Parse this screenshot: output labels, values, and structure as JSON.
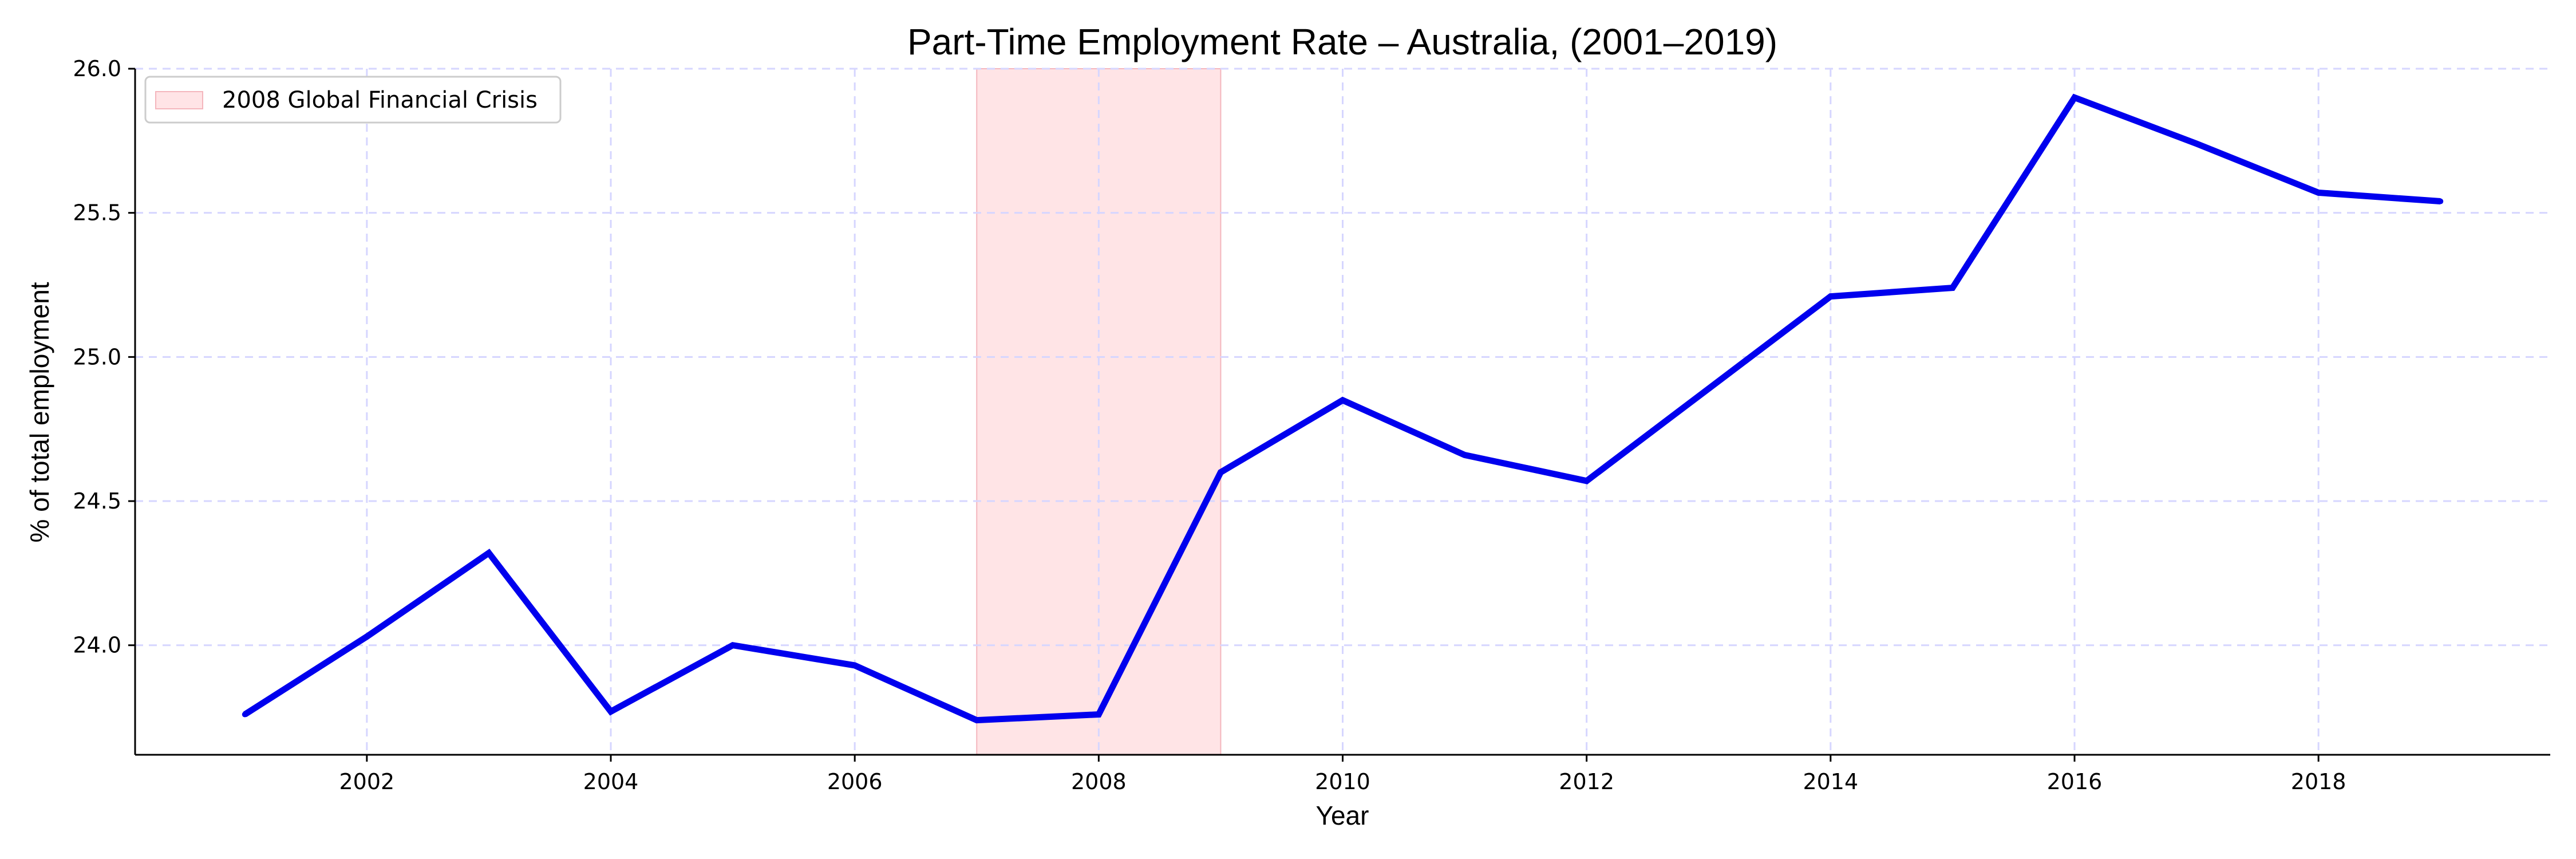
{
  "chart_data": {
    "type": "line",
    "title": "Part-Time Employment Rate – Australia, (2001–2019)",
    "xlabel": "Year",
    "ylabel": "% of total employment",
    "x": [
      2001,
      2002,
      2003,
      2004,
      2005,
      2006,
      2007,
      2008,
      2009,
      2010,
      2011,
      2012,
      2013,
      2014,
      2015,
      2016,
      2017,
      2018,
      2019
    ],
    "series": [
      {
        "name": "Part-time employment rate",
        "color": "#0000ee",
        "values": [
          23.76,
          24.03,
          24.32,
          23.77,
          24.0,
          23.93,
          23.74,
          23.76,
          24.6,
          24.85,
          24.66,
          24.57,
          24.89,
          25.21,
          25.24,
          25.9,
          25.74,
          25.57,
          25.54
        ]
      }
    ],
    "xlim": [
      2000.1,
      2019.9
    ],
    "ylim": [
      23.62,
      26.0
    ],
    "xticks": [
      "2002",
      "2004",
      "2006",
      "2008",
      "2010",
      "2012",
      "2014",
      "2016",
      "2018"
    ],
    "yticks": [
      "24.0",
      "24.5",
      "25.0",
      "25.5",
      "26.0"
    ],
    "grid": true,
    "shaded_region": {
      "label": "2008 Global Financial Crisis",
      "x_start": 2007,
      "x_end": 2009,
      "color": "#ffe4e6"
    },
    "legend_position": "top-left"
  }
}
